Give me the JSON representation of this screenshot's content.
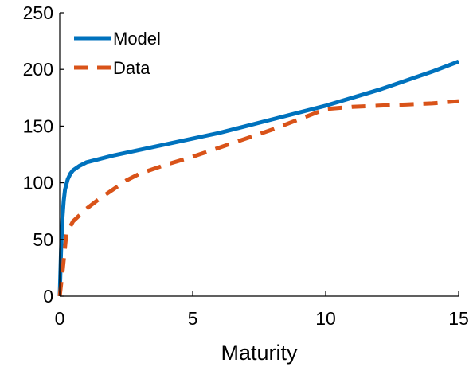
{
  "chart_data": {
    "type": "line",
    "title": "",
    "xlabel": "Maturity",
    "ylabel": "",
    "xlim": [
      0,
      15
    ],
    "ylim": [
      0,
      250
    ],
    "xticks": [
      0,
      5,
      10,
      15
    ],
    "yticks": [
      0,
      50,
      100,
      150,
      200,
      250
    ],
    "grid": false,
    "legend_position": "top-left",
    "series": [
      {
        "name": "Model",
        "style": "solid",
        "color": "#0072BD",
        "x": [
          0,
          0.05,
          0.1,
          0.15,
          0.2,
          0.3,
          0.4,
          0.5,
          0.75,
          1,
          1.5,
          2,
          3,
          4,
          5,
          6,
          7,
          8,
          9,
          10,
          11,
          12,
          13,
          14,
          15
        ],
        "y": [
          0,
          40,
          68,
          84,
          94,
          103,
          108,
          111,
          115,
          118,
          121,
          124,
          129,
          134,
          139,
          144,
          150,
          156,
          162,
          168,
          175,
          182,
          190,
          198,
          207
        ]
      },
      {
        "name": "Data",
        "style": "dashed",
        "color": "#D95319",
        "x": [
          0,
          0.1,
          0.25,
          0.5,
          1,
          1.5,
          2,
          2.5,
          3,
          4,
          5,
          6,
          7,
          8,
          9,
          10,
          11,
          12,
          13,
          14,
          15
        ],
        "y": [
          0,
          20,
          55,
          66,
          77,
          86,
          94,
          102,
          108,
          116,
          123,
          131,
          139,
          147,
          156,
          165,
          167,
          168,
          169,
          170,
          172
        ]
      }
    ]
  }
}
